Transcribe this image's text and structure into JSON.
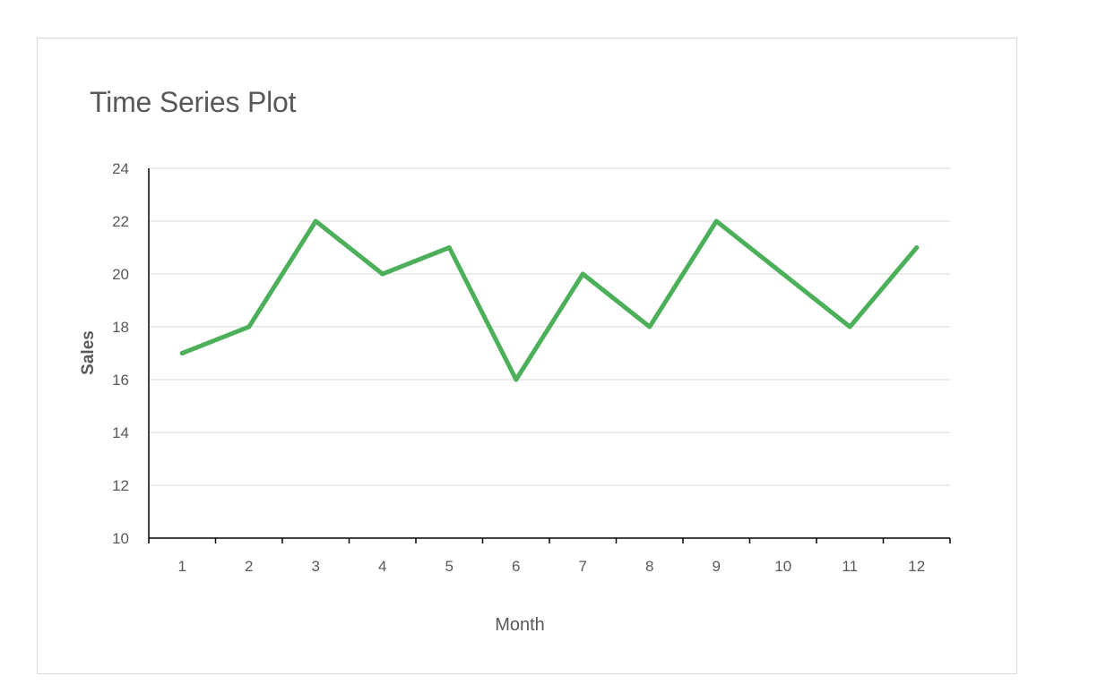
{
  "chart_data": {
    "type": "line",
    "title": "Time Series Plot",
    "xlabel": "Month",
    "ylabel": "Sales",
    "categories": [
      1,
      2,
      3,
      4,
      5,
      6,
      7,
      8,
      9,
      10,
      11,
      12
    ],
    "series": [
      {
        "values": [
          17,
          18,
          22,
          20,
          21,
          16,
          20,
          18,
          22,
          20,
          18,
          21
        ]
      }
    ],
    "ylim": [
      10,
      24
    ],
    "yticks": [
      10,
      12,
      14,
      16,
      18,
      20,
      22,
      24
    ],
    "grid": true,
    "colors": {
      "series": "#4caf5a",
      "grid": "#d9d9d9",
      "axis": "#000000"
    }
  }
}
